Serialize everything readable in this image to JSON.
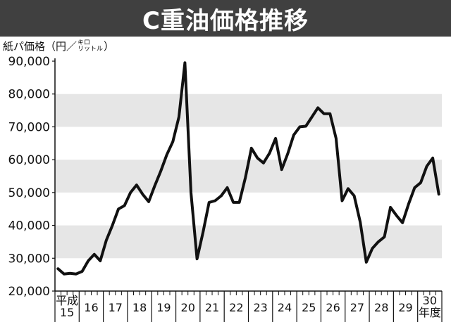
{
  "chart_data": {
    "type": "line",
    "title": "C重油価格推移",
    "unit": {
      "prefix": "紙パ価格（円／",
      "ruby_top": "キロ",
      "ruby_bottom": "リットル",
      "suffix": "）"
    },
    "y_tick_labels": [
      "20,000",
      "30,000",
      "40,000",
      "50,000",
      "60,000",
      "70,000",
      "80,000",
      "90,000"
    ],
    "ylim": [
      20000,
      90000
    ],
    "grid": "alternating horizontal bands",
    "x_tick_labels": [
      [
        "平成",
        "15"
      ],
      [
        "16"
      ],
      [
        "17"
      ],
      [
        "18"
      ],
      [
        "19"
      ],
      [
        "20"
      ],
      [
        "21"
      ],
      [
        "22"
      ],
      [
        "23"
      ],
      [
        "24"
      ],
      [
        "25"
      ],
      [
        "26"
      ],
      [
        "27"
      ],
      [
        "28"
      ],
      [
        "29"
      ],
      [
        "30",
        "年度"
      ]
    ],
    "quarters_per_year": 4,
    "series": [
      {
        "values": [
          26800,
          25200,
          25400,
          25200,
          26000,
          29200,
          31200,
          29200,
          35500,
          40000,
          45000,
          46000,
          50000,
          52300,
          49500,
          47200,
          52000,
          56500,
          61500,
          65500,
          73000,
          89500,
          50000,
          29800,
          38000,
          47000,
          47500,
          49000,
          51500,
          47000,
          47000,
          54500,
          63500,
          60500,
          59000,
          62000,
          66500,
          57000,
          61800,
          67500,
          70000,
          70200,
          73000,
          75800,
          74000,
          74000,
          66500,
          47500,
          51200,
          49000,
          41000,
          28800,
          33000,
          35000,
          36500,
          45500,
          43000,
          40800,
          46500,
          51500,
          53000,
          58000,
          60500,
          49500
        ]
      }
    ],
    "colors": {
      "title_bg": "#404040",
      "band": "#e6e6e6",
      "line": "#111111"
    }
  }
}
